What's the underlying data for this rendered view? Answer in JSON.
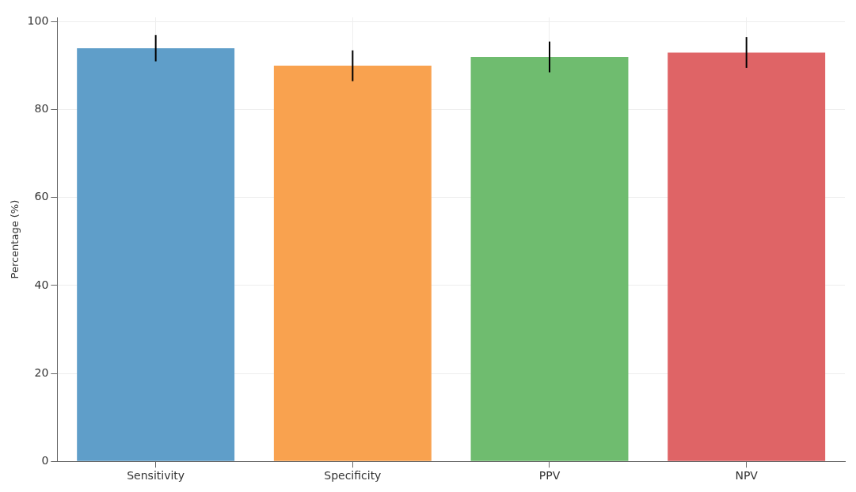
{
  "chart_data": {
    "type": "bar",
    "ylabel": "Percentage (%)",
    "categories": [
      "Sensitivity",
      "Specificity",
      "PPV",
      "NPV"
    ],
    "values": [
      94,
      90,
      92,
      93
    ],
    "colors": [
      "#5f9ec9",
      "#f9a24f",
      "#6fbc6f",
      "#df6466"
    ],
    "errors": [
      3,
      3.5,
      3.5,
      3.5
    ],
    "ylim": [
      0,
      101
    ],
    "yticks": [
      0,
      20,
      40,
      60,
      80,
      100
    ],
    "grid": true
  }
}
